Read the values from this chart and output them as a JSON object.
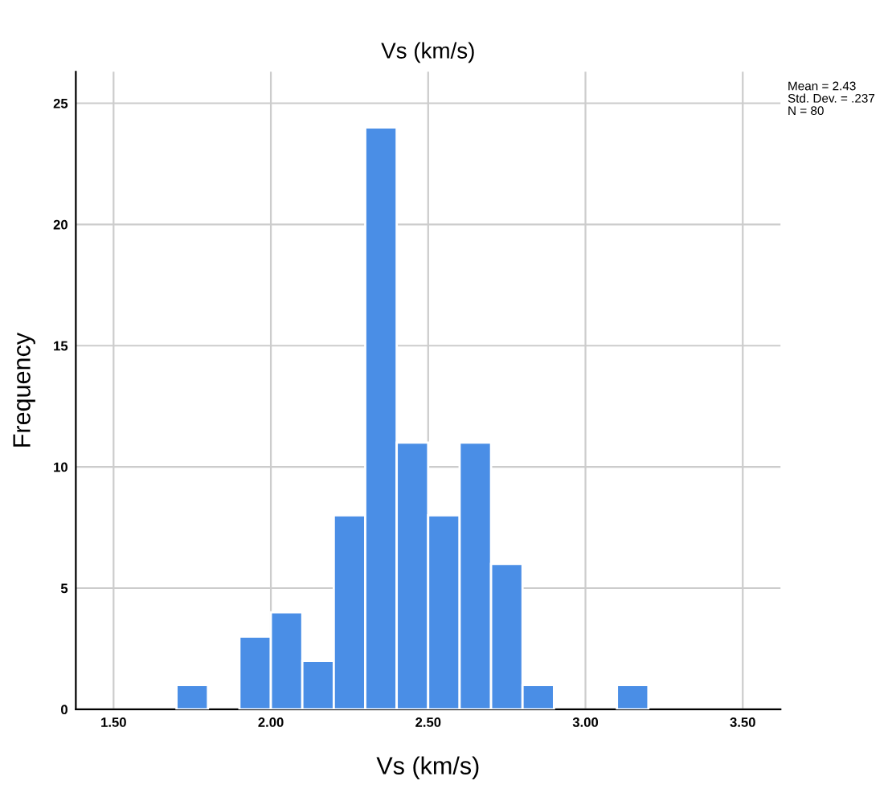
{
  "chart_data": {
    "type": "histogram",
    "title": "Vs (km/s)",
    "xlabel": "Vs (km/s)",
    "ylabel": "Frequency",
    "bins": [
      1.7,
      1.8,
      1.9,
      2.0,
      2.1,
      2.2,
      2.3,
      2.4,
      2.5,
      2.6,
      2.7,
      2.8,
      2.9,
      3.0,
      3.1,
      3.2
    ],
    "values": [
      1,
      0,
      3,
      4,
      2,
      8,
      24,
      11,
      8,
      11,
      6,
      1,
      0,
      0,
      1
    ],
    "color": "#4a8ee6",
    "xlim": [
      1.38,
      3.62
    ],
    "xticks": [
      {
        "value": 1.5,
        "label": "1.50"
      },
      {
        "value": 2.0,
        "label": "2.00"
      },
      {
        "value": 2.5,
        "label": "2.50"
      },
      {
        "value": 3.0,
        "label": "3.00"
      },
      {
        "value": 3.5,
        "label": "3.50"
      }
    ],
    "ylim": [
      0,
      26.3
    ],
    "yticks": [
      0,
      5,
      10,
      15,
      20,
      25
    ],
    "grid": true,
    "annotations": [
      "Mean = 2.43\nStd. Dev. = .237\nN = 80"
    ]
  }
}
